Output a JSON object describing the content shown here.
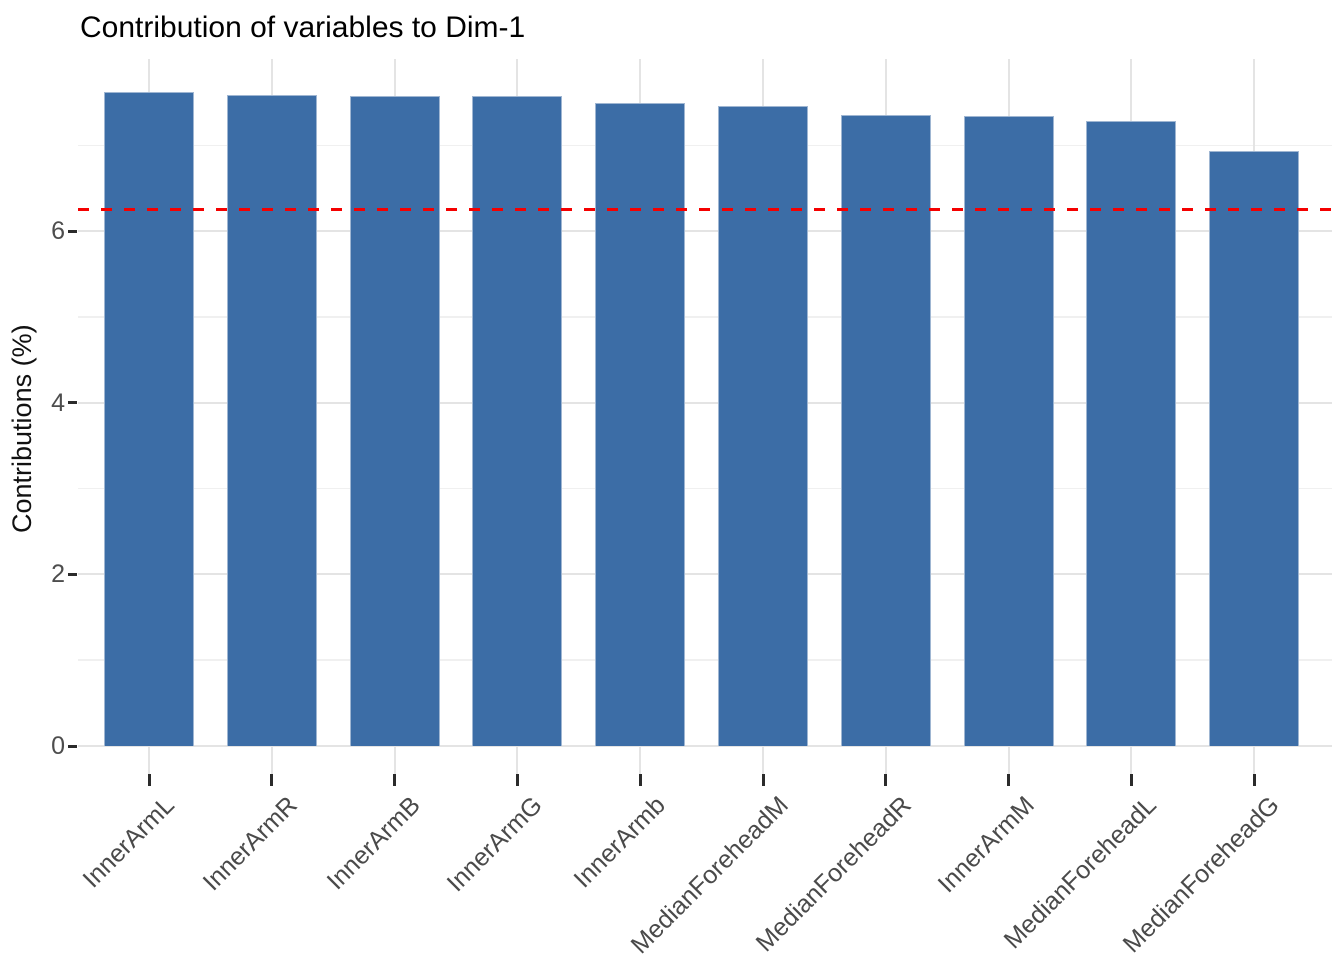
{
  "chart_data": {
    "type": "bar",
    "title": "Contribution of variables to Dim-1",
    "xlabel": "",
    "ylabel": "Contributions (%)",
    "categories": [
      "InnerArmL",
      "InnerArmR",
      "InnerArmB",
      "InnerArmG",
      "InnerArmb",
      "MedianForeheadM",
      "MedianForeheadR",
      "InnerArmM",
      "MedianForeheadL",
      "MedianForeheadG"
    ],
    "values": [
      7.62,
      7.59,
      7.58,
      7.57,
      7.49,
      7.46,
      7.35,
      7.34,
      7.28,
      6.94
    ],
    "reference_line": 6.25,
    "reference_line_style": "dashed",
    "y_ticks": [
      0,
      2,
      4,
      6
    ],
    "y_minor_ticks": [
      1,
      3,
      5,
      7
    ],
    "ylim": [
      0,
      8
    ],
    "grid": "on",
    "legend": "none",
    "colors": {
      "bar_fill": "#3c6da6",
      "bar_border": "#9fb6d2",
      "reference": "#f40000",
      "grid_major": "#e4e4e4",
      "grid_minor": "#f0f0f0",
      "axis_text": "#4d4d4d",
      "tick_mark": "#2b2b2b",
      "title_text": "#000000"
    }
  }
}
